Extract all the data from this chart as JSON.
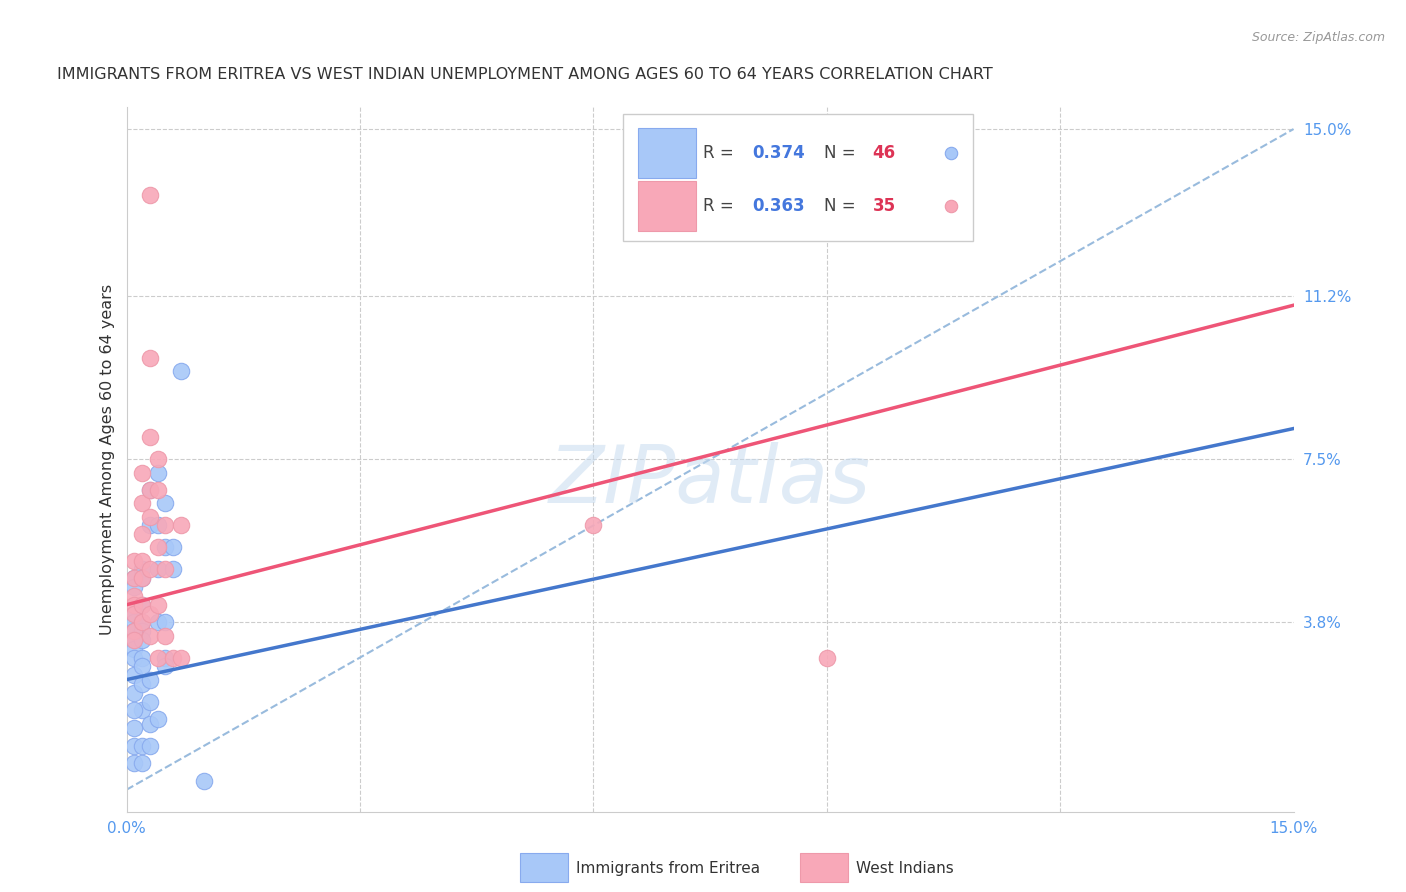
{
  "title": "IMMIGRANTS FROM ERITREA VS WEST INDIAN UNEMPLOYMENT AMONG AGES 60 TO 64 YEARS CORRELATION CHART",
  "source": "Source: ZipAtlas.com",
  "ylabel": "Unemployment Among Ages 60 to 64 years",
  "x_min": 0.0,
  "x_max": 0.15,
  "y_min": -0.005,
  "y_max": 0.155,
  "x_ticks": [
    0.0,
    0.03,
    0.06,
    0.09,
    0.12,
    0.15
  ],
  "y_tick_labels_right": [
    "3.8%",
    "7.5%",
    "11.2%",
    "15.0%"
  ],
  "y_tick_vals_right": [
    0.038,
    0.075,
    0.112,
    0.15
  ],
  "eritrea_color": "#a8c8f8",
  "west_indian_color": "#f8a8b8",
  "eritrea_edge_color": "#88aaee",
  "west_indian_edge_color": "#ee99aa",
  "eritrea_line_color": "#4477cc",
  "west_indian_line_color": "#ee5577",
  "dashed_line_color": "#99bbdd",
  "legend_R_color": "#4477dd",
  "legend_N_color": "#dd3355",
  "watermark": "ZIPatlas",
  "eritrea_scatter": [
    [
      0.001,
      0.048
    ],
    [
      0.001,
      0.046
    ],
    [
      0.002,
      0.05
    ],
    [
      0.002,
      0.048
    ],
    [
      0.001,
      0.04
    ],
    [
      0.001,
      0.038
    ],
    [
      0.001,
      0.036
    ],
    [
      0.001,
      0.034
    ],
    [
      0.001,
      0.032
    ],
    [
      0.001,
      0.03
    ],
    [
      0.001,
      0.026
    ],
    [
      0.001,
      0.022
    ],
    [
      0.002,
      0.042
    ],
    [
      0.002,
      0.038
    ],
    [
      0.002,
      0.036
    ],
    [
      0.002,
      0.034
    ],
    [
      0.002,
      0.03
    ],
    [
      0.002,
      0.028
    ],
    [
      0.002,
      0.024
    ],
    [
      0.002,
      0.018
    ],
    [
      0.001,
      0.018
    ],
    [
      0.001,
      0.014
    ],
    [
      0.001,
      0.01
    ],
    [
      0.001,
      0.006
    ],
    [
      0.002,
      0.01
    ],
    [
      0.002,
      0.006
    ],
    [
      0.003,
      0.068
    ],
    [
      0.003,
      0.06
    ],
    [
      0.004,
      0.072
    ],
    [
      0.004,
      0.06
    ],
    [
      0.004,
      0.05
    ],
    [
      0.004,
      0.038
    ],
    [
      0.005,
      0.065
    ],
    [
      0.005,
      0.055
    ],
    [
      0.005,
      0.038
    ],
    [
      0.005,
      0.03
    ],
    [
      0.005,
      0.028
    ],
    [
      0.006,
      0.055
    ],
    [
      0.006,
      0.05
    ],
    [
      0.003,
      0.025
    ],
    [
      0.003,
      0.02
    ],
    [
      0.003,
      0.015
    ],
    [
      0.003,
      0.01
    ],
    [
      0.004,
      0.016
    ],
    [
      0.007,
      0.095
    ],
    [
      0.01,
      0.002
    ]
  ],
  "west_indian_scatter": [
    [
      0.001,
      0.052
    ],
    [
      0.001,
      0.048
    ],
    [
      0.001,
      0.044
    ],
    [
      0.001,
      0.042
    ],
    [
      0.001,
      0.04
    ],
    [
      0.001,
      0.036
    ],
    [
      0.001,
      0.034
    ],
    [
      0.002,
      0.072
    ],
    [
      0.002,
      0.065
    ],
    [
      0.002,
      0.058
    ],
    [
      0.002,
      0.052
    ],
    [
      0.002,
      0.048
    ],
    [
      0.002,
      0.042
    ],
    [
      0.002,
      0.038
    ],
    [
      0.003,
      0.135
    ],
    [
      0.003,
      0.098
    ],
    [
      0.003,
      0.08
    ],
    [
      0.003,
      0.068
    ],
    [
      0.003,
      0.062
    ],
    [
      0.003,
      0.05
    ],
    [
      0.003,
      0.04
    ],
    [
      0.003,
      0.035
    ],
    [
      0.004,
      0.075
    ],
    [
      0.004,
      0.068
    ],
    [
      0.004,
      0.055
    ],
    [
      0.004,
      0.042
    ],
    [
      0.004,
      0.03
    ],
    [
      0.005,
      0.06
    ],
    [
      0.005,
      0.05
    ],
    [
      0.005,
      0.035
    ],
    [
      0.006,
      0.03
    ],
    [
      0.007,
      0.06
    ],
    [
      0.007,
      0.03
    ],
    [
      0.06,
      0.06
    ],
    [
      0.09,
      0.03
    ]
  ],
  "eritrea_trend_x": [
    0.0,
    0.15
  ],
  "eritrea_trend_y": [
    0.025,
    0.082
  ],
  "west_indian_trend_x": [
    0.0,
    0.15
  ],
  "west_indian_trend_y": [
    0.042,
    0.11
  ]
}
